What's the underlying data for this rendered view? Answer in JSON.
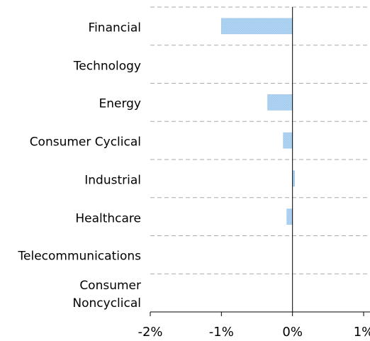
{
  "chart_data": {
    "type": "bar",
    "orientation": "horizontal",
    "categories": [
      "Financial",
      "Technology",
      "Energy",
      "Consumer Cyclical",
      "Industrial",
      "Healthcare",
      "Telecommunications",
      "Consumer\nNoncyclical"
    ],
    "values": [
      -1.0,
      0,
      -0.35,
      -0.13,
      0.03,
      -0.08,
      0,
      0
    ],
    "color": "#b3d6f3",
    "xlim": [
      -2,
      1
    ],
    "xticks": [
      {
        "value": -2,
        "label": "-2%"
      },
      {
        "value": -1,
        "label": "-1%"
      },
      {
        "value": 0,
        "label": "0%"
      },
      {
        "value": 1,
        "label": "1%"
      }
    ]
  }
}
